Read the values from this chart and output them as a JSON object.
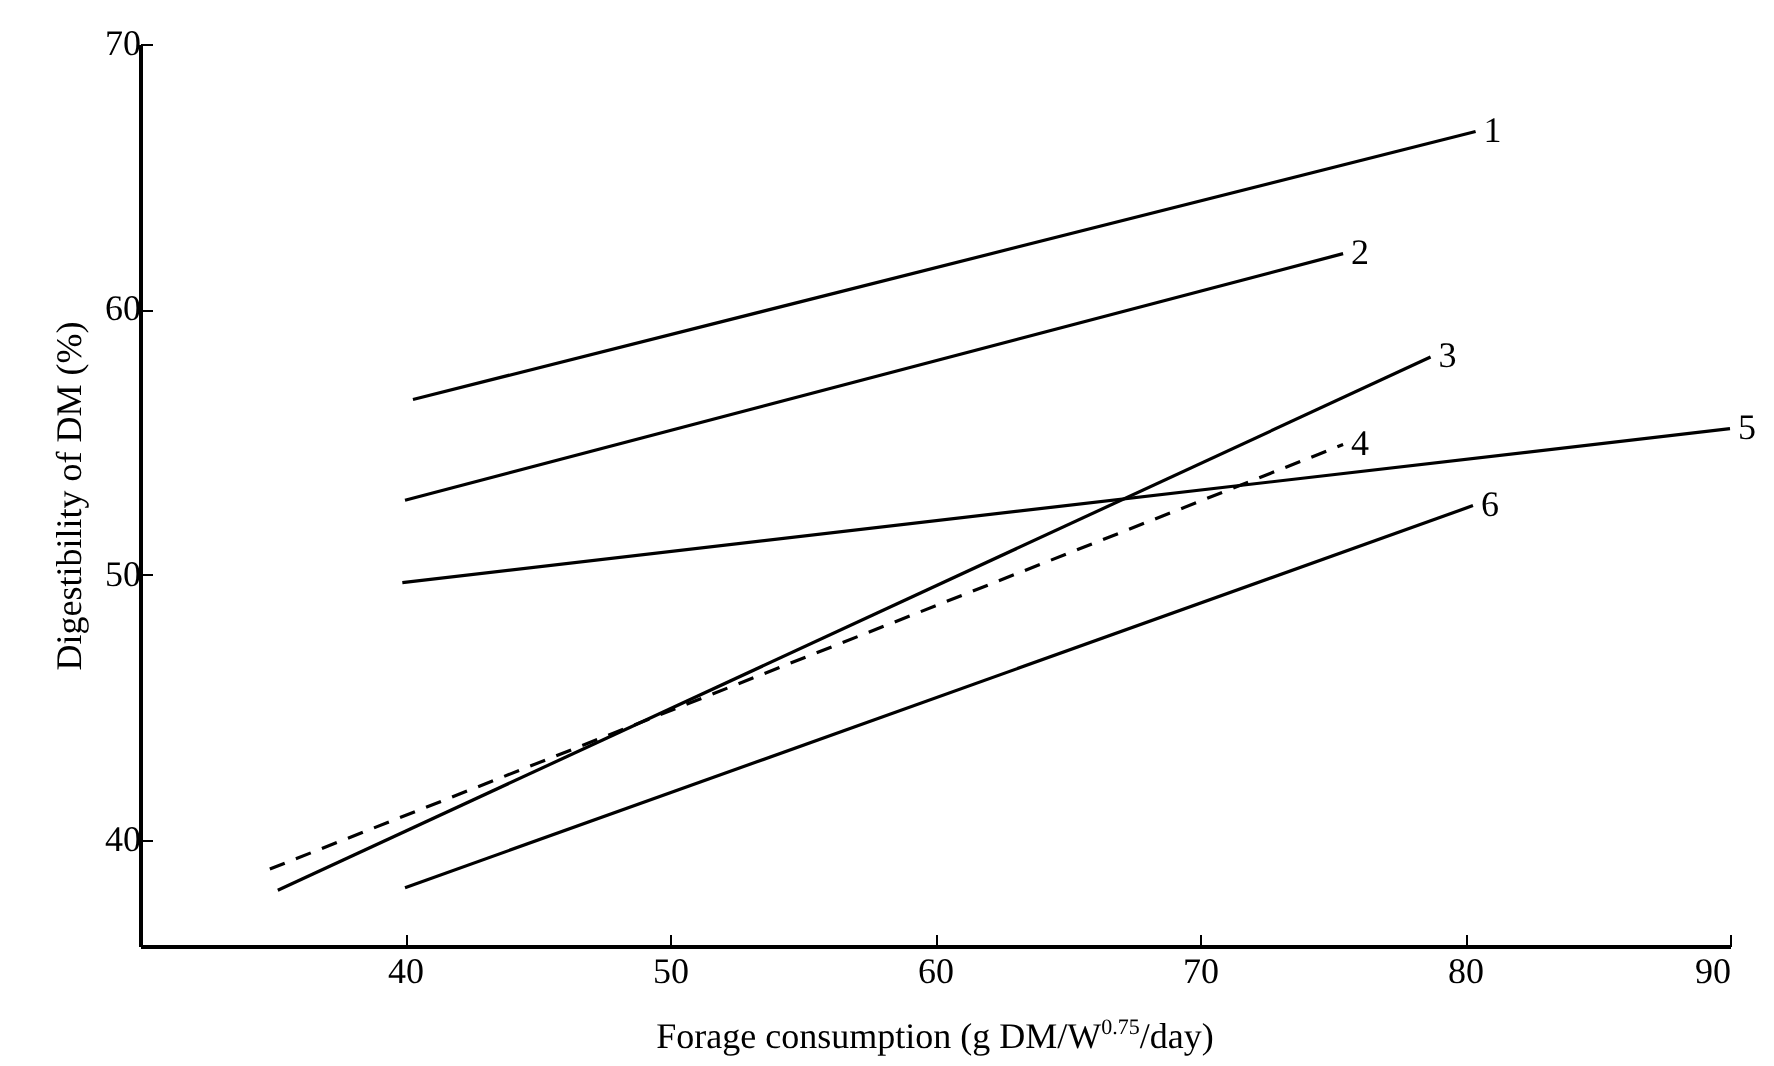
{
  "chart_data": {
    "type": "line",
    "xlabel": "Forage consumption (g DM/W$^{0.75}$/day)",
    "ylabel": "Digestibility of DM (%)",
    "xlim": [
      30,
      90
    ],
    "ylim": [
      36,
      70
    ],
    "xticks": [
      40,
      50,
      60,
      70,
      80,
      90
    ],
    "yticks": [
      40,
      50,
      60,
      70
    ],
    "grid": false,
    "legend": false,
    "marker": "none",
    "series": [
      {
        "name": "1",
        "color": "#000000",
        "line_style": "solid",
        "x": [
          40.3,
          80.4
        ],
        "values": [
          56.6,
          66.7
        ]
      },
      {
        "name": "2",
        "color": "#000000",
        "line_style": "solid",
        "x": [
          40,
          75.4
        ],
        "values": [
          52.8,
          62.1
        ]
      },
      {
        "name": "3",
        "color": "#000000",
        "line_style": "solid",
        "x": [
          35.2,
          78.7
        ],
        "values": [
          38.1,
          58.2
        ]
      },
      {
        "name": "4",
        "color": "#000000",
        "line_style": "dashed",
        "x": [
          34.9,
          75.4
        ],
        "values": [
          38.9,
          54.9
        ]
      },
      {
        "name": "5",
        "color": "#000000",
        "line_style": "solid",
        "x": [
          39.9,
          90
        ],
        "values": [
          49.7,
          55.5
        ]
      },
      {
        "name": "6",
        "color": "#000000",
        "line_style": "solid",
        "x": [
          40,
          80.3
        ],
        "values": [
          38.2,
          52.6
        ]
      }
    ]
  }
}
